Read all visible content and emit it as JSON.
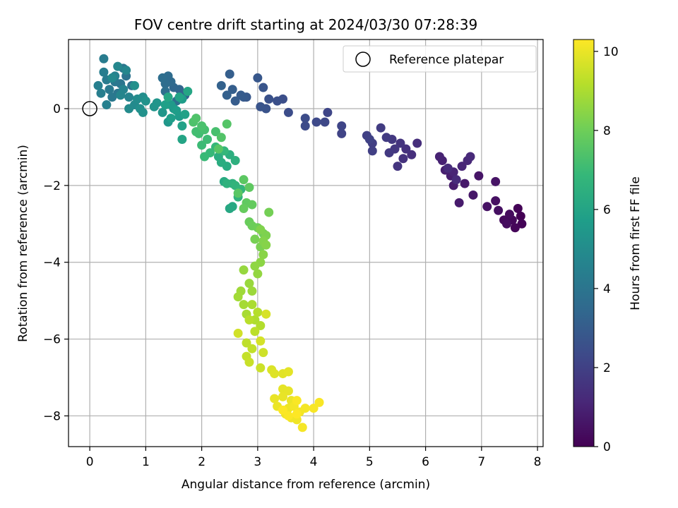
{
  "chart_data": {
    "type": "scatter",
    "title": "FOV centre drift starting at 2024/03/30 07:28:39",
    "xlabel": "Angular distance from reference (arcmin)",
    "ylabel": "Rotation from reference (arcmin)",
    "xlim": [
      -0.38,
      8.1
    ],
    "ylim": [
      -8.8,
      1.8
    ],
    "xticks": [
      0,
      1,
      2,
      3,
      4,
      5,
      6,
      7,
      8
    ],
    "yticks": [
      -8,
      -6,
      -4,
      -2,
      0
    ],
    "xtick_labels": [
      "0",
      "1",
      "2",
      "3",
      "4",
      "5",
      "6",
      "7",
      "8"
    ],
    "ytick_labels": [
      "−8",
      "−6",
      "−4",
      "−2",
      "0"
    ],
    "grid": true,
    "legend": {
      "position": "top-right",
      "entries": [
        {
          "label": "Reference platepar",
          "marker": "open-circle"
        }
      ]
    },
    "reference_point": {
      "x": 0,
      "y": 0
    },
    "colorbar": {
      "label": "Hours from first FF file",
      "colormap": "viridis",
      "range": [
        0,
        10.3
      ],
      "ticks": [
        0,
        2,
        4,
        6,
        8,
        10
      ],
      "tick_labels": [
        "0",
        "2",
        "4",
        "6",
        "8",
        "10"
      ]
    },
    "series": [
      {
        "color_by": "hours",
        "points": [
          [
            7.7,
            -2.8,
            0.0
          ],
          [
            7.65,
            -2.6,
            0.05
          ],
          [
            7.72,
            -3.0,
            0.1
          ],
          [
            7.6,
            -3.1,
            0.15
          ],
          [
            7.55,
            -2.9,
            0.2
          ],
          [
            7.4,
            -2.9,
            0.25
          ],
          [
            7.5,
            -2.75,
            0.3
          ],
          [
            7.45,
            -3.0,
            0.35
          ],
          [
            7.3,
            -2.65,
            0.4
          ],
          [
            7.25,
            -2.4,
            0.45
          ],
          [
            7.1,
            -2.55,
            0.5
          ],
          [
            7.25,
            -1.9,
            0.55
          ],
          [
            6.95,
            -1.75,
            0.6
          ],
          [
            6.85,
            -2.25,
            0.65
          ],
          [
            6.7,
            -1.95,
            0.7
          ],
          [
            6.6,
            -2.45,
            0.75
          ],
          [
            6.5,
            -2.0,
            0.8
          ],
          [
            6.45,
            -1.75,
            0.85
          ],
          [
            6.35,
            -1.6,
            0.9
          ],
          [
            6.3,
            -1.35,
            0.95
          ],
          [
            6.25,
            -1.25,
            1.0
          ],
          [
            6.5,
            -1.65,
            1.05
          ],
          [
            6.65,
            -1.5,
            1.1
          ],
          [
            6.75,
            -1.35,
            1.15
          ],
          [
            6.8,
            -1.25,
            1.2
          ],
          [
            6.55,
            -1.85,
            1.25
          ],
          [
            6.4,
            -1.55,
            1.3
          ],
          [
            5.85,
            -0.9,
            1.35
          ],
          [
            5.75,
            -1.2,
            1.4
          ],
          [
            5.65,
            -1.05,
            1.45
          ],
          [
            5.6,
            -1.3,
            1.5
          ],
          [
            5.55,
            -0.9,
            1.55
          ],
          [
            5.5,
            -1.5,
            1.6
          ],
          [
            5.45,
            -1.05,
            1.65
          ],
          [
            5.4,
            -0.8,
            1.7
          ],
          [
            5.35,
            -1.15,
            1.75
          ],
          [
            5.3,
            -0.75,
            1.8
          ],
          [
            5.2,
            -0.5,
            1.85
          ],
          [
            5.05,
            -0.9,
            1.9
          ],
          [
            5.05,
            -1.1,
            1.95
          ],
          [
            4.95,
            -0.7,
            2.0
          ],
          [
            5.0,
            -0.8,
            2.05
          ],
          [
            4.5,
            -0.65,
            2.1
          ],
          [
            4.5,
            -0.45,
            2.15
          ],
          [
            4.25,
            -0.1,
            2.2
          ],
          [
            4.2,
            -0.35,
            2.25
          ],
          [
            4.05,
            -0.35,
            2.3
          ],
          [
            3.85,
            -0.45,
            2.35
          ],
          [
            3.85,
            -0.25,
            2.4
          ],
          [
            3.55,
            -0.1,
            2.45
          ],
          [
            3.45,
            0.25,
            2.5
          ],
          [
            3.35,
            0.2,
            2.55
          ],
          [
            3.2,
            0.25,
            2.6
          ],
          [
            3.15,
            0.0,
            2.65
          ],
          [
            3.05,
            0.05,
            2.7
          ],
          [
            3.1,
            0.55,
            2.75
          ],
          [
            3.0,
            0.8,
            2.8
          ],
          [
            2.8,
            0.3,
            2.85
          ],
          [
            2.75,
            0.3,
            2.9
          ],
          [
            2.7,
            0.35,
            2.95
          ],
          [
            2.6,
            0.2,
            3.0
          ],
          [
            2.55,
            0.5,
            3.05
          ],
          [
            2.5,
            0.9,
            3.1
          ],
          [
            2.45,
            0.35,
            3.15
          ],
          [
            2.35,
            0.6,
            3.2
          ],
          [
            1.7,
            0.35,
            3.3
          ],
          [
            1.6,
            0.5,
            3.35
          ],
          [
            1.5,
            0.55,
            3.4
          ],
          [
            1.45,
            0.7,
            3.5
          ],
          [
            1.4,
            0.85,
            3.6
          ],
          [
            1.35,
            0.65,
            3.65
          ],
          [
            1.3,
            0.8,
            3.7
          ],
          [
            1.35,
            0.45,
            3.75
          ],
          [
            1.55,
            0.2,
            3.8
          ],
          [
            0.75,
            0.6,
            3.85
          ],
          [
            0.65,
            0.85,
            3.9
          ],
          [
            0.6,
            1.05,
            3.95
          ],
          [
            0.55,
            0.65,
            4.0
          ],
          [
            0.5,
            0.4,
            4.05
          ],
          [
            0.45,
            0.7,
            4.1
          ],
          [
            0.4,
            0.3,
            4.15
          ],
          [
            0.35,
            0.5,
            4.2
          ],
          [
            0.3,
            0.75,
            4.25
          ],
          [
            0.25,
            1.3,
            4.3
          ],
          [
            0.25,
            0.95,
            4.35
          ],
          [
            0.2,
            0.4,
            4.4
          ],
          [
            0.15,
            0.6,
            4.45
          ],
          [
            0.3,
            0.1,
            4.5
          ],
          [
            0.45,
            0.85,
            4.55
          ],
          [
            0.6,
            0.5,
            4.6
          ],
          [
            0.7,
            0.3,
            4.65
          ],
          [
            0.55,
            0.35,
            4.7
          ],
          [
            0.65,
            1.0,
            4.75
          ],
          [
            0.5,
            1.1,
            4.8
          ],
          [
            0.4,
            0.8,
            4.85
          ],
          [
            0.8,
            0.1,
            4.9
          ],
          [
            0.7,
            0.0,
            4.95
          ],
          [
            0.85,
            0.25,
            5.0
          ],
          [
            0.95,
            0.3,
            5.05
          ],
          [
            0.9,
            0.0,
            5.1
          ],
          [
            0.8,
            0.6,
            5.15
          ],
          [
            0.95,
            -0.1,
            5.2
          ],
          [
            1.0,
            0.2,
            5.25
          ],
          [
            1.15,
            0.05,
            5.3
          ],
          [
            1.2,
            0.15,
            5.35
          ],
          [
            1.3,
            -0.1,
            5.4
          ],
          [
            1.4,
            -0.35,
            5.45
          ],
          [
            1.5,
            0.0,
            5.5
          ],
          [
            1.45,
            0.1,
            5.55
          ],
          [
            1.6,
            -0.2,
            5.6
          ],
          [
            1.65,
            0.25,
            5.65
          ],
          [
            1.55,
            -0.05,
            5.7
          ],
          [
            1.45,
            -0.25,
            5.75
          ],
          [
            1.35,
            0.1,
            5.8
          ],
          [
            1.7,
            -0.15,
            5.85
          ],
          [
            1.65,
            -0.45,
            5.9
          ],
          [
            1.6,
            0.3,
            5.95
          ],
          [
            1.65,
            -0.8,
            6.0
          ],
          [
            1.75,
            0.45,
            6.05
          ],
          [
            1.4,
            0.3,
            6.1
          ],
          [
            2.5,
            -2.6,
            6.15
          ],
          [
            2.55,
            -2.55,
            6.2
          ],
          [
            2.4,
            -1.9,
            6.25
          ],
          [
            2.45,
            -1.5,
            6.3
          ],
          [
            2.35,
            -1.4,
            6.35
          ],
          [
            2.3,
            -1.25,
            6.4
          ],
          [
            2.5,
            -1.2,
            6.45
          ],
          [
            2.6,
            -1.35,
            6.5
          ],
          [
            2.55,
            -1.95,
            6.55
          ],
          [
            2.45,
            -1.95,
            6.6
          ],
          [
            2.65,
            -2.3,
            6.65
          ],
          [
            2.6,
            -2.0,
            6.7
          ],
          [
            2.7,
            -2.1,
            6.75
          ],
          [
            2.4,
            -1.1,
            6.8
          ],
          [
            2.25,
            -1.0,
            6.85
          ],
          [
            2.15,
            -1.15,
            6.9
          ],
          [
            2.05,
            -1.25,
            6.95
          ],
          [
            2.0,
            -0.95,
            7.0
          ],
          [
            2.1,
            -0.8,
            7.05
          ],
          [
            1.95,
            -0.65,
            7.1
          ],
          [
            1.9,
            -0.6,
            7.15
          ],
          [
            2.05,
            -0.55,
            7.2
          ],
          [
            2.25,
            -0.6,
            7.25
          ],
          [
            2.0,
            -0.45,
            7.3
          ],
          [
            1.85,
            -0.35,
            7.35
          ],
          [
            1.9,
            -0.25,
            7.4
          ],
          [
            2.35,
            -0.75,
            7.45
          ],
          [
            2.45,
            -0.4,
            7.5
          ],
          [
            2.3,
            -1.05,
            7.55
          ],
          [
            2.65,
            -2.2,
            7.6
          ],
          [
            2.75,
            -1.85,
            7.65
          ],
          [
            2.85,
            -2.05,
            7.7
          ],
          [
            2.8,
            -2.45,
            7.75
          ],
          [
            2.9,
            -2.5,
            7.8
          ],
          [
            2.75,
            -2.6,
            7.85
          ],
          [
            2.85,
            -2.95,
            7.9
          ],
          [
            2.9,
            -3.05,
            7.95
          ],
          [
            3.0,
            -3.1,
            8.0
          ],
          [
            3.1,
            -3.25,
            8.05
          ],
          [
            3.2,
            -2.7,
            8.1
          ],
          [
            2.95,
            -3.4,
            8.15
          ],
          [
            3.05,
            -3.6,
            8.2
          ],
          [
            3.15,
            -3.3,
            8.25
          ],
          [
            3.05,
            -3.15,
            8.3
          ],
          [
            3.1,
            -3.45,
            8.35
          ],
          [
            3.15,
            -3.55,
            8.4
          ],
          [
            3.1,
            -3.8,
            8.45
          ],
          [
            3.05,
            -4.0,
            8.5
          ],
          [
            2.95,
            -4.1,
            8.55
          ],
          [
            3.0,
            -4.3,
            8.6
          ],
          [
            2.75,
            -4.2,
            8.65
          ],
          [
            2.85,
            -4.55,
            8.7
          ],
          [
            2.9,
            -4.75,
            8.75
          ],
          [
            2.7,
            -4.75,
            8.8
          ],
          [
            2.65,
            -4.9,
            8.85
          ],
          [
            2.75,
            -5.1,
            8.9
          ],
          [
            2.8,
            -5.35,
            8.95
          ],
          [
            2.9,
            -5.1,
            9.0
          ],
          [
            2.95,
            -5.5,
            9.05
          ],
          [
            3.05,
            -5.65,
            9.1
          ],
          [
            3.0,
            -5.3,
            9.15
          ],
          [
            2.85,
            -5.5,
            9.2
          ],
          [
            2.95,
            -5.8,
            9.25
          ],
          [
            2.8,
            -6.1,
            9.3
          ],
          [
            2.9,
            -6.25,
            9.35
          ],
          [
            2.8,
            -6.45,
            9.4
          ],
          [
            2.85,
            -6.6,
            9.45
          ],
          [
            3.05,
            -6.75,
            9.5
          ],
          [
            3.1,
            -6.35,
            9.55
          ],
          [
            2.65,
            -5.85,
            9.6
          ],
          [
            3.05,
            -6.05,
            9.65
          ],
          [
            3.15,
            -5.35,
            9.7
          ],
          [
            3.25,
            -6.8,
            9.75
          ],
          [
            3.3,
            -6.9,
            9.8
          ],
          [
            3.45,
            -6.9,
            9.85
          ],
          [
            3.55,
            -6.85,
            9.9
          ],
          [
            3.45,
            -7.3,
            9.92
          ],
          [
            3.55,
            -7.35,
            9.94
          ],
          [
            3.45,
            -7.5,
            9.96
          ],
          [
            3.3,
            -7.55,
            9.98
          ],
          [
            3.6,
            -7.6,
            10.0
          ],
          [
            3.35,
            -7.75,
            10.02
          ],
          [
            3.55,
            -7.8,
            10.04
          ],
          [
            3.5,
            -7.95,
            10.06
          ],
          [
            3.6,
            -8.05,
            10.08
          ],
          [
            3.7,
            -8.1,
            10.1
          ],
          [
            3.75,
            -7.9,
            10.12
          ],
          [
            3.65,
            -7.75,
            10.14
          ],
          [
            3.85,
            -7.8,
            10.16
          ],
          [
            3.8,
            -8.3,
            10.18
          ],
          [
            4.0,
            -7.8,
            10.2
          ],
          [
            4.1,
            -7.65,
            10.22
          ],
          [
            3.7,
            -7.6,
            10.24
          ],
          [
            3.55,
            -8.0,
            10.26
          ],
          [
            3.45,
            -7.85,
            10.28
          ],
          [
            3.7,
            -7.95,
            10.3
          ]
        ]
      }
    ]
  }
}
